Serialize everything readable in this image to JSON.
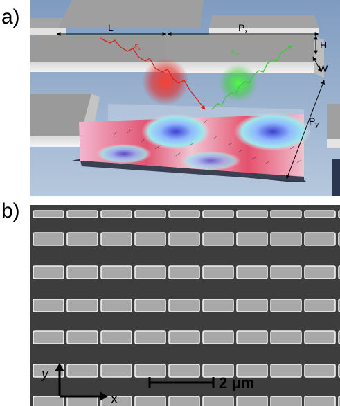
{
  "panels": {
    "a": {
      "label": "a)"
    },
    "b": {
      "label": "b)"
    }
  },
  "illustration": {
    "dim_L": "L",
    "dim_Px": "P",
    "dim_Px_sub": "x",
    "dim_Py": "P",
    "dim_Py_sub": "y",
    "dim_H": "H",
    "dim_W": "W",
    "beam_in": "E",
    "beam_in_sub": "ω",
    "beam_out": "E",
    "beam_out_sub": "3ω",
    "colors": {
      "substrate": "#8fa8c8",
      "block_top": "#9a9a9a",
      "beam_in": "#e0201a",
      "beam_out": "#3ec83a"
    }
  },
  "sem": {
    "scale_text": "2 μm",
    "axis_y": "y",
    "axis_x": "x",
    "colors": {
      "background": "#3d3d3d",
      "bar_fill": "#a8a8a8",
      "bar_edge": "#f2f2f2"
    }
  }
}
